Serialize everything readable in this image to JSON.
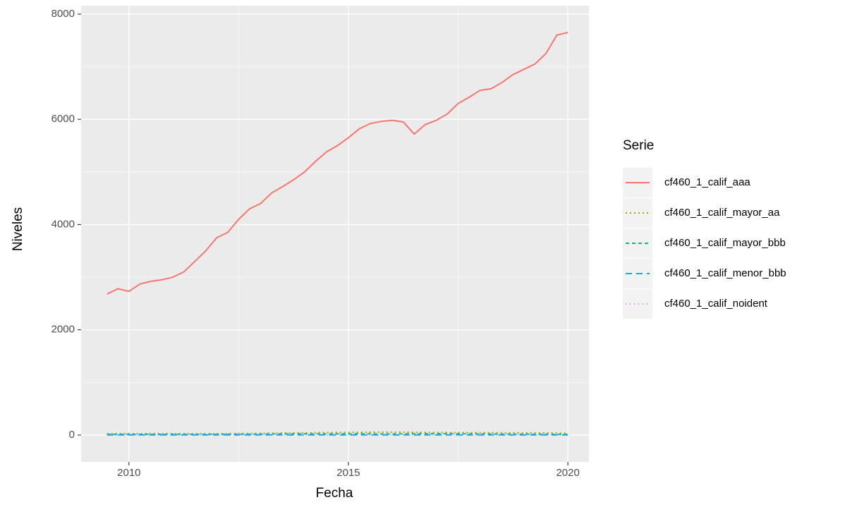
{
  "chart_data": {
    "type": "line",
    "x_label": "Fecha",
    "y_label": "Niveles",
    "legend_title": "Serie",
    "legend_position": "right",
    "grid": true,
    "xlim": [
      2008.91,
      2020.48
    ],
    "xticks": [
      2010,
      2015,
      2020
    ],
    "xminor_ticks": [
      2012.5,
      2017.5
    ],
    "ylim": [
      -510,
      8160
    ],
    "yticks": [
      0,
      2000,
      4000,
      6000,
      8000
    ],
    "yminor_ticks": [
      1000,
      3000,
      5000,
      7000
    ],
    "x": [
      2009.5,
      2009.75,
      2010,
      2010.25,
      2010.5,
      2010.75,
      2011,
      2011.25,
      2011.5,
      2011.75,
      2012,
      2012.25,
      2012.5,
      2012.75,
      2013,
      2013.25,
      2013.5,
      2013.75,
      2014,
      2014.25,
      2014.5,
      2014.75,
      2015,
      2015.25,
      2015.5,
      2015.75,
      2016,
      2016.25,
      2016.5,
      2016.75,
      2017,
      2017.25,
      2017.5,
      2017.75,
      2018,
      2018.25,
      2018.5,
      2018.75,
      2019,
      2019.25,
      2019.5,
      2019.75,
      2020
    ],
    "series": [
      {
        "name": "cf460_1_calif_aaa",
        "color": "#f8766d",
        "linetype": "solid",
        "values": [
          2680,
          2780,
          2730,
          2870,
          2920,
          2950,
          3000,
          3100,
          3300,
          3500,
          3750,
          3850,
          4100,
          4300,
          4400,
          4600,
          4720,
          4850,
          5000,
          5200,
          5380,
          5500,
          5650,
          5820,
          5920,
          5960,
          5980,
          5950,
          5720,
          5900,
          5980,
          6100,
          6300,
          6420,
          6550,
          6580,
          6700,
          6850,
          6950,
          7050,
          7250,
          7600,
          7650
        ]
      },
      {
        "name": "cf460_1_calif_mayor_aa",
        "color": "#a3a500",
        "linetype": "dotted",
        "values": [
          25,
          28,
          27,
          26,
          28,
          27,
          25,
          26,
          24,
          25,
          27,
          26,
          28,
          30,
          32,
          35,
          38,
          40,
          42,
          44,
          45,
          47,
          50,
          52,
          53,
          54,
          55,
          54,
          52,
          50,
          48,
          47,
          46,
          45,
          44,
          43,
          42,
          41,
          40,
          40,
          39,
          38,
          38
        ]
      },
      {
        "name": "cf460_1_calif_mayor_bbb",
        "color": "#00bf7d",
        "linetype": "dashed",
        "values": [
          12,
          13,
          14,
          13,
          12,
          14,
          15,
          14,
          13,
          14,
          15,
          16,
          15,
          16,
          18,
          20,
          22,
          23,
          24,
          22,
          21,
          22,
          23,
          24,
          22,
          21,
          20,
          22,
          24,
          25,
          26,
          25,
          24,
          22,
          20,
          19,
          18,
          17,
          16,
          15,
          14,
          13,
          13
        ]
      },
      {
        "name": "cf460_1_calif_menor_bbb",
        "color": "#00b0f6",
        "linetype": "longdash",
        "values": [
          3,
          3,
          2,
          2,
          3,
          2,
          2,
          3,
          3,
          2,
          2,
          3,
          3,
          2,
          2,
          3,
          3,
          2,
          2,
          3,
          3,
          2,
          2,
          3,
          3,
          2,
          2,
          3,
          3,
          2,
          2,
          3,
          3,
          2,
          2,
          3,
          3,
          2,
          2,
          3,
          3,
          2,
          2
        ]
      },
      {
        "name": "cf460_1_calif_noident",
        "color": "#e76bf3",
        "linetype": "dotted-sparse",
        "values": [
          1,
          1,
          1,
          1,
          1,
          1,
          1,
          1,
          1,
          1,
          1,
          1,
          1,
          1,
          1,
          1,
          1,
          1,
          1,
          1,
          1,
          1,
          1,
          1,
          1,
          1,
          1,
          1,
          1,
          1,
          1,
          1,
          1,
          1,
          1,
          1,
          1,
          1,
          1,
          1,
          1,
          1,
          1
        ]
      }
    ]
  }
}
